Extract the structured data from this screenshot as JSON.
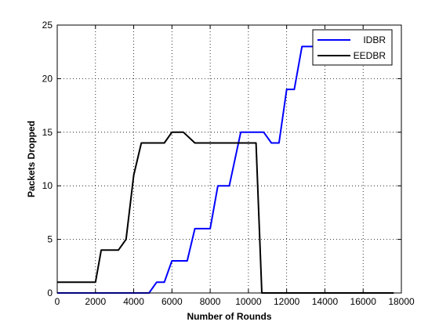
{
  "chart_data": {
    "type": "line",
    "xlabel": "Number of Rounds",
    "ylabel": "Packets Dropped",
    "xlim": [
      0,
      18000
    ],
    "ylim": [
      0,
      25
    ],
    "xticks": [
      0,
      2000,
      4000,
      6000,
      8000,
      10000,
      12000,
      14000,
      16000,
      18000
    ],
    "yticks": [
      0,
      5,
      10,
      15,
      20,
      25
    ],
    "grid": true,
    "legend_position": "top-right",
    "series": [
      {
        "name": "IDBR",
        "color": "#0000ff",
        "x": [
          0,
          4800,
          5200,
          5600,
          6000,
          6800,
          7200,
          8000,
          8400,
          9000,
          9600,
          10800,
          11200,
          11600,
          12000,
          12400,
          12800,
          13300,
          13500
        ],
        "y": [
          0,
          0,
          1,
          1,
          3,
          3,
          6,
          6,
          10,
          10,
          15,
          15,
          14,
          14,
          19,
          19,
          23,
          23,
          23
        ]
      },
      {
        "name": "EEDBR",
        "color": "#000000",
        "x": [
          0,
          2000,
          2300,
          3200,
          3600,
          4000,
          4400,
          5600,
          6000,
          6600,
          7200,
          10400,
          10700,
          17600
        ],
        "y": [
          1,
          1,
          4,
          4,
          5,
          11,
          14,
          14,
          15,
          15,
          14,
          14,
          0,
          0
        ]
      }
    ]
  }
}
